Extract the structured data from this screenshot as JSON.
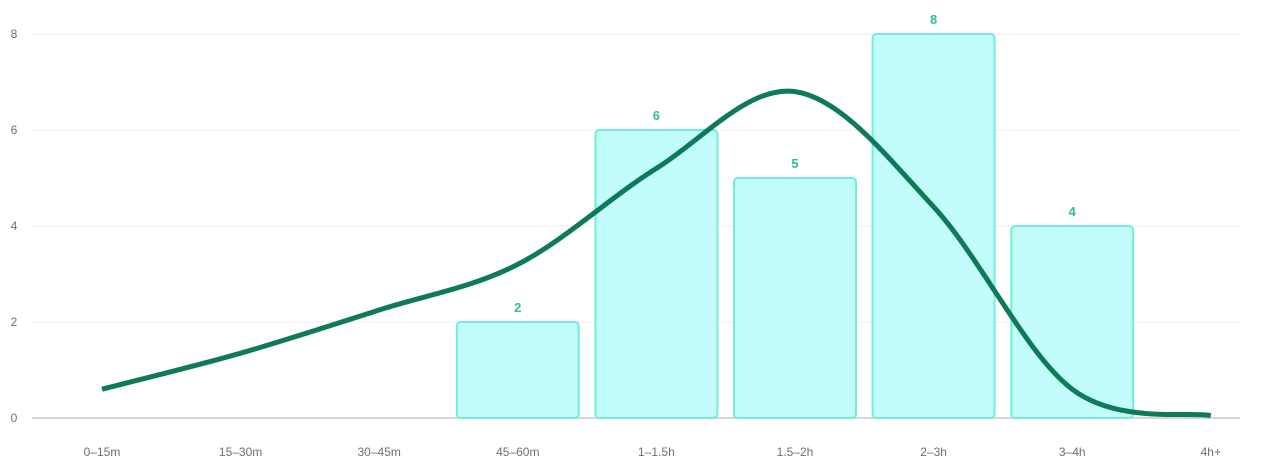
{
  "chart_data": {
    "type": "bar",
    "categories": [
      "0–15m",
      "15–30m",
      "30–45m",
      "45–60m",
      "1–1.5h",
      "1.5–2h",
      "2–3h",
      "3–4h",
      "4h+"
    ],
    "values": [
      0,
      0,
      0,
      2,
      6,
      5,
      8,
      4,
      0
    ],
    "data_labels": [
      "",
      "",
      "",
      "2",
      "6",
      "5",
      "8",
      "4",
      ""
    ],
    "trend_line": {
      "type": "line",
      "smooth": true,
      "values": [
        0.6,
        1.35,
        2.25,
        3.2,
        5.2,
        6.8,
        4.4,
        0.6,
        0.05
      ]
    },
    "ylim": [
      0,
      8
    ],
    "yticks": [
      0,
      2,
      4,
      6,
      8
    ],
    "title": "",
    "xlabel": "",
    "ylabel": "",
    "grid": true,
    "legend": "none",
    "colors": {
      "bar_fill": "#c2fdfb",
      "bar_stroke": "#6ff0d6",
      "data_label": "#2bc28b",
      "line": "#0e7a59",
      "grid": "#ececec",
      "axis": "#c8c8c8",
      "tick_text": "#6f6f6f"
    }
  }
}
